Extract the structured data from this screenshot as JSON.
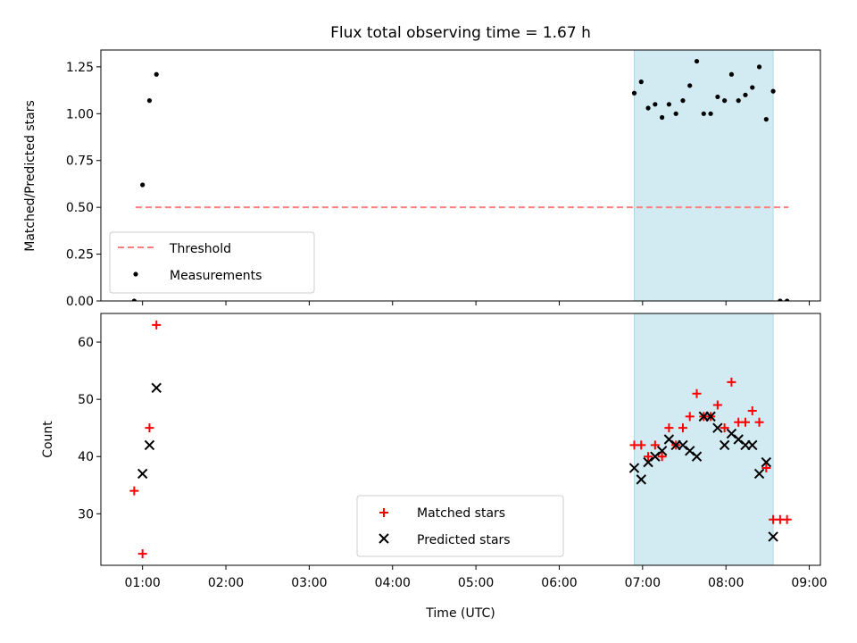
{
  "chart_data": [
    {
      "type": "scatter",
      "title": "Flux total observing time = 1.67 h",
      "ylabel": "Matched/Predicted stars",
      "xlabel": "",
      "xlim": [
        "00:30",
        "09:08"
      ],
      "ylim": [
        0,
        1.34
      ],
      "yticks": [
        "0.00",
        "0.25",
        "0.50",
        "0.75",
        "1.00",
        "1.25"
      ],
      "shaded_span": [
        "06:54",
        "08:34"
      ],
      "shade_color": "#add8e6",
      "threshold": {
        "name": "Threshold",
        "y": 0.5,
        "x_range": [
          "00:55",
          "08:45"
        ],
        "color": "#ff7f7f"
      },
      "series": [
        {
          "name": "Measurements",
          "marker": "dot",
          "color": "#000000",
          "points": [
            [
              "00:54",
              0.0
            ],
            [
              "01:00",
              0.62
            ],
            [
              "01:05",
              1.07
            ],
            [
              "01:10",
              1.21
            ],
            [
              "06:54",
              1.11
            ],
            [
              "06:59",
              1.17
            ],
            [
              "07:04",
              1.03
            ],
            [
              "07:09",
              1.05
            ],
            [
              "07:14",
              0.98
            ],
            [
              "07:19",
              1.05
            ],
            [
              "07:24",
              1.0
            ],
            [
              "07:29",
              1.07
            ],
            [
              "07:34",
              1.15
            ],
            [
              "07:39",
              1.28
            ],
            [
              "07:44",
              1.0
            ],
            [
              "07:49",
              1.0
            ],
            [
              "07:54",
              1.09
            ],
            [
              "07:59",
              1.07
            ],
            [
              "08:04",
              1.21
            ],
            [
              "08:09",
              1.07
            ],
            [
              "08:14",
              1.1
            ],
            [
              "08:19",
              1.14
            ],
            [
              "08:24",
              1.25
            ],
            [
              "08:29",
              0.97
            ],
            [
              "08:34",
              1.12
            ],
            [
              "08:39",
              0.0
            ],
            [
              "08:44",
              0.0
            ]
          ]
        }
      ],
      "legend": {
        "position": "lower-left",
        "entries": [
          "Threshold",
          "Measurements"
        ]
      }
    },
    {
      "type": "scatter",
      "title": "",
      "ylabel": "Count",
      "xlabel": "Time (UTC)",
      "xlim": [
        "00:30",
        "09:08"
      ],
      "ylim": [
        21,
        65
      ],
      "yticks": [
        "30",
        "40",
        "50",
        "60"
      ],
      "xticks": [
        "01:00",
        "02:00",
        "03:00",
        "04:00",
        "05:00",
        "06:00",
        "07:00",
        "08:00",
        "09:00"
      ],
      "shaded_span": [
        "06:54",
        "08:34"
      ],
      "shade_color": "#add8e6",
      "series": [
        {
          "name": "Matched stars",
          "marker": "plus",
          "color": "#ff0000",
          "points": [
            [
              "00:54",
              34
            ],
            [
              "01:00",
              23
            ],
            [
              "01:05",
              45
            ],
            [
              "01:10",
              63
            ],
            [
              "06:54",
              42
            ],
            [
              "06:59",
              42
            ],
            [
              "07:04",
              40
            ],
            [
              "07:09",
              42
            ],
            [
              "07:14",
              40
            ],
            [
              "07:19",
              45
            ],
            [
              "07:24",
              42
            ],
            [
              "07:29",
              45
            ],
            [
              "07:34",
              47
            ],
            [
              "07:39",
              51
            ],
            [
              "07:44",
              47
            ],
            [
              "07:49",
              47
            ],
            [
              "07:54",
              49
            ],
            [
              "07:59",
              45
            ],
            [
              "08:04",
              53
            ],
            [
              "08:09",
              46
            ],
            [
              "08:14",
              46
            ],
            [
              "08:19",
              48
            ],
            [
              "08:24",
              46
            ],
            [
              "08:29",
              38
            ],
            [
              "08:34",
              29
            ],
            [
              "08:39",
              29
            ],
            [
              "08:44",
              29
            ]
          ]
        },
        {
          "name": "Predicted stars",
          "marker": "x",
          "color": "#000000",
          "points": [
            [
              "01:00",
              37
            ],
            [
              "01:05",
              42
            ],
            [
              "01:10",
              52
            ],
            [
              "06:54",
              38
            ],
            [
              "06:59",
              36
            ],
            [
              "07:04",
              39
            ],
            [
              "07:09",
              40
            ],
            [
              "07:14",
              41
            ],
            [
              "07:19",
              43
            ],
            [
              "07:24",
              42
            ],
            [
              "07:29",
              42
            ],
            [
              "07:34",
              41
            ],
            [
              "07:39",
              40
            ],
            [
              "07:44",
              47
            ],
            [
              "07:49",
              47
            ],
            [
              "07:54",
              45
            ],
            [
              "07:59",
              42
            ],
            [
              "08:04",
              44
            ],
            [
              "08:09",
              43
            ],
            [
              "08:14",
              42
            ],
            [
              "08:19",
              42
            ],
            [
              "08:24",
              37
            ],
            [
              "08:29",
              39
            ],
            [
              "08:34",
              26
            ]
          ]
        }
      ],
      "legend": {
        "position": "lower-center",
        "entries": [
          "Matched stars",
          "Predicted stars"
        ]
      }
    }
  ]
}
